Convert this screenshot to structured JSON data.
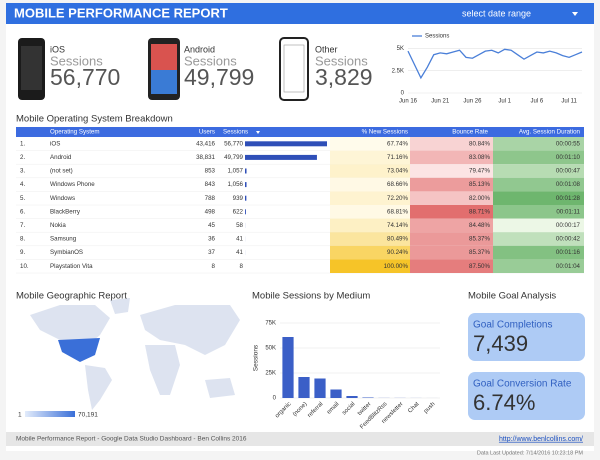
{
  "header": {
    "title": "MOBILE PERFORMANCE REPORT",
    "date_range": "select date range"
  },
  "scorecards": [
    {
      "label": "iOS",
      "metric": "Sessions",
      "value": "56,770"
    },
    {
      "label": "Android",
      "metric": "Sessions",
      "value": "49,799"
    },
    {
      "label": "Other",
      "metric": "Sessions",
      "value": "3,829"
    }
  ],
  "chart_data": [
    {
      "type": "line",
      "categories": [
        "Jun 16",
        null,
        null,
        null,
        null,
        "Jun 21",
        null,
        null,
        null,
        null,
        "Jun 26",
        null,
        null,
        null,
        null,
        "Jul 1",
        null,
        null,
        null,
        null,
        "Jul 6",
        null,
        null,
        null,
        null,
        "Jul 11",
        null,
        null
      ],
      "series": [
        {
          "name": "Sessions",
          "color": "#4a7fd8",
          "values": [
            4700,
            3200,
            1700,
            2900,
            4300,
            4500,
            4400,
            4600,
            4800,
            4000,
            3900,
            4300,
            4700,
            4800,
            4500,
            4900,
            4800,
            4300,
            3800,
            4200,
            4600,
            4500,
            4700,
            4500,
            4200,
            4000,
            4300,
            4600
          ]
        }
      ],
      "ylim": [
        0,
        5500
      ],
      "yticks": [
        0,
        {
          "value": 2500,
          "label": "2.5K"
        },
        {
          "value": 5000,
          "label": "5K"
        }
      ],
      "grid": true,
      "legend": "top"
    },
    {
      "type": "bar",
      "title": "Mobile Sessions by Medium",
      "y_label": "Sessions",
      "categories": [
        "organic",
        "(none)",
        "referral",
        "email",
        "social",
        "twitter",
        "FeedBlitzRss",
        "newsletter",
        "Chat",
        "push"
      ],
      "values": [
        61000,
        21000,
        19500,
        8500,
        2000,
        500,
        100,
        100,
        50,
        20
      ],
      "color": "#3b5fc7",
      "ylim": [
        0,
        80000
      ],
      "yticks": [
        0,
        {
          "value": 25000,
          "label": "25K"
        },
        {
          "value": 50000,
          "label": "50K"
        },
        {
          "value": 75000,
          "label": "75K"
        }
      ],
      "grid": true
    }
  ],
  "table": {
    "title": "Mobile Operating System Breakdown",
    "columns": [
      "Operating System",
      "Users",
      "Sessions",
      "% New Sessions",
      "Bounce Rate",
      "Avg. Session Duration"
    ],
    "rows": [
      [
        "1.",
        "iOS",
        "43,416",
        56770,
        "67.74%",
        "80.84%",
        "00:00:55"
      ],
      [
        "2.",
        "Android",
        "38,831",
        49799,
        "71.16%",
        "83.08%",
        "00:01:10"
      ],
      [
        "3.",
        "(not set)",
        "853",
        1057,
        "73.04%",
        "79.47%",
        "00:00:47"
      ],
      [
        "4.",
        "Windows Phone",
        "843",
        1056,
        "68.66%",
        "85.13%",
        "00:01:08"
      ],
      [
        "5.",
        "Windows",
        "788",
        939,
        "72.20%",
        "82.00%",
        "00:01:28"
      ],
      [
        "6.",
        "BlackBerry",
        "498",
        622,
        "68.81%",
        "88.71%",
        "00:01:11"
      ],
      [
        "7.",
        "Nokia",
        "45",
        58,
        "74.14%",
        "84.48%",
        "00:00:17"
      ],
      [
        "8.",
        "Samsung",
        "36",
        41,
        "80.49%",
        "85.37%",
        "00:00:42"
      ],
      [
        "9.",
        "SymbianOS",
        "37",
        41,
        "90.24%",
        "85.37%",
        "00:01:16"
      ],
      [
        "10.",
        "Playstation Vita",
        "8",
        8,
        "100.00%",
        "87.50%",
        "00:01:04"
      ]
    ],
    "session_labels": [
      "56,770",
      "49,799",
      "1,057",
      "1,056",
      "939",
      "622",
      "58",
      "41",
      "41",
      "8"
    ]
  },
  "map": {
    "title": "Mobile Geographic Report",
    "legend_min": "1",
    "legend_max": "70,191"
  },
  "goals": {
    "title": "Mobile Goal Analysis",
    "items": [
      {
        "label": "Goal Completions",
        "value": "7,439"
      },
      {
        "label": "Goal Conversion Rate",
        "value": "6.74%"
      }
    ]
  },
  "footer": {
    "text": "Mobile Performance Report - Google Data Studio Dashboard - Ben Collins 2016",
    "link": "http://www.benlcollins.com/",
    "updated": "Data Last Updated: 7/14/2016 10:23:18 PM"
  }
}
